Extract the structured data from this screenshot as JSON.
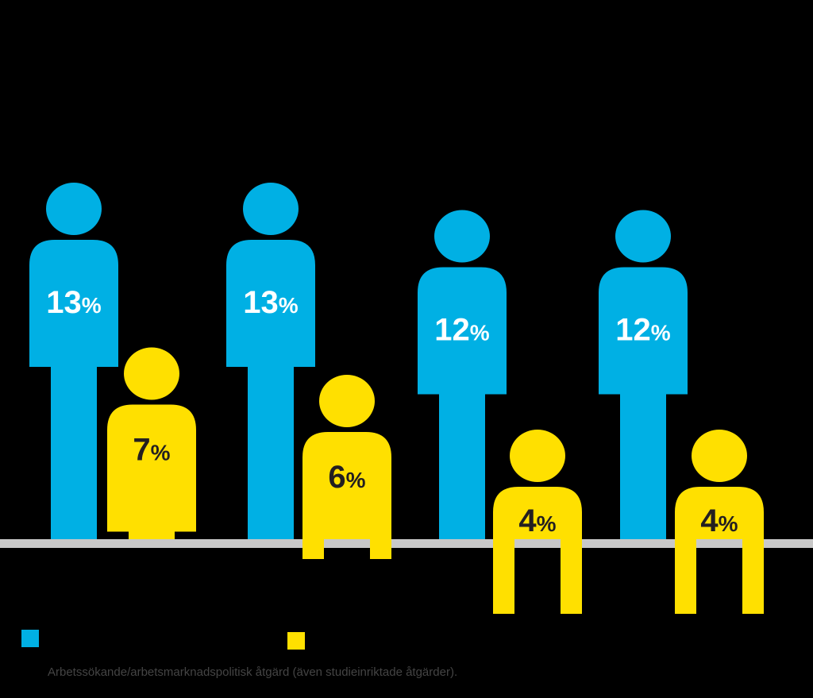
{
  "chart_data": {
    "type": "bar",
    "categories": [
      "",
      "",
      "",
      ""
    ],
    "series": [
      {
        "values": [
          13,
          13,
          12,
          12
        ],
        "color": "#00b0e4",
        "label_color": "#ffffff"
      },
      {
        "values": [
          7,
          6,
          4,
          4
        ],
        "color": "#ffe000",
        "label_color": "#231f20"
      }
    ],
    "unit": "%",
    "value_labels": {
      "series_0": [
        "13",
        "13",
        "12",
        "12"
      ],
      "series_1": [
        "7",
        "6",
        "4",
        "4"
      ]
    },
    "title": "",
    "xlabel": "",
    "ylabel": "",
    "ylim": [
      0,
      13
    ],
    "grid": false,
    "legend": "bottom-left"
  },
  "legend": {
    "items": [
      {
        "swatch_color": "#00b0e4",
        "label": ""
      },
      {
        "swatch_color": "#ffe000",
        "label": ""
      }
    ]
  },
  "footnote": "Arbetssökande/arbetsmarknadspolitisk åtgärd (även studieinriktade åtgärder).",
  "colors": {
    "background": "#000000",
    "baseline": "#c8c8c8"
  }
}
